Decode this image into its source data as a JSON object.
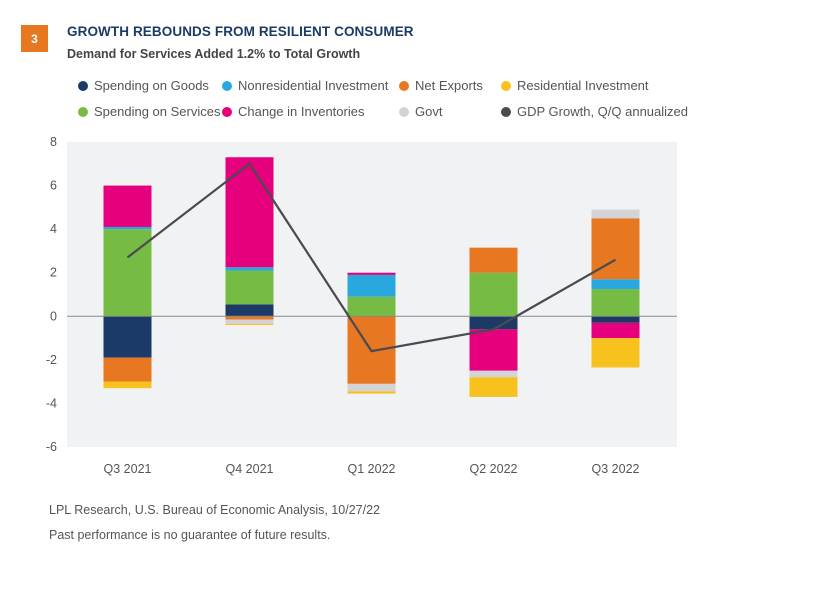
{
  "header": {
    "badge": "3",
    "title": "GROWTH REBOUNDS FROM RESILIENT CONSUMER",
    "subtitle": "Demand for Services Added 1.2% to Total Growth"
  },
  "footer": {
    "source": "LPL Research, U.S. Bureau of Economic Analysis,  10/27/22",
    "disclaimer": "Past performance is no guarantee of future results."
  },
  "colors": {
    "badge": "#e87722",
    "title": "#1b3a66",
    "plot_background": "#f1f2f4"
  },
  "chart_data": {
    "type": "bar",
    "stacked": true,
    "title": "GROWTH REBOUNDS FROM RESILIENT CONSUMER",
    "subtitle": "Demand for Services Added 1.2% to Total Growth",
    "xlabel": "",
    "ylabel": "",
    "ylim": [
      -6,
      8
    ],
    "yticks": [
      8,
      6,
      4,
      2,
      0,
      -2,
      -4,
      -6
    ],
    "grid": false,
    "legend_position": "top",
    "categories": [
      "Q3 2021",
      "Q4 2021",
      "Q1 2022",
      "Q2 2022",
      "Q3 2022"
    ],
    "series": [
      {
        "name": "Spending on Goods",
        "color": "#1b3a66",
        "values": [
          -1.9,
          0.55,
          0.0,
          -0.6,
          -0.3
        ]
      },
      {
        "name": "Spending on Services",
        "color": "#76bc44",
        "values": [
          4.0,
          1.55,
          0.9,
          2.0,
          1.25
        ]
      },
      {
        "name": "Nonresidential Investment",
        "color": "#29a8e0",
        "values": [
          0.1,
          0.15,
          1.0,
          0.0,
          0.45
        ]
      },
      {
        "name": "Change in Inventories",
        "color": "#e6007e",
        "values": [
          1.9,
          5.05,
          0.1,
          -1.9,
          -0.7
        ]
      },
      {
        "name": "Net Exports",
        "color": "#e87722",
        "values": [
          -1.1,
          -0.15,
          -3.1,
          1.15,
          2.8
        ]
      },
      {
        "name": "Govt",
        "color": "#d4d4d6",
        "values": [
          0.0,
          -0.2,
          -0.35,
          -0.3,
          0.4
        ]
      },
      {
        "name": "Residential Investment",
        "color": "#f7c11e",
        "values": [
          -0.3,
          -0.05,
          -0.1,
          -0.9,
          -1.35
        ]
      }
    ],
    "line": {
      "name": "GDP Growth, Q/Q annualized",
      "color": "#4a4a4f",
      "values": [
        2.7,
        7.0,
        -1.6,
        -0.6,
        2.6
      ]
    }
  },
  "legend": [
    {
      "label": "Spending on Goods",
      "color": "#1b3a66"
    },
    {
      "label": "Nonresidential Investment",
      "color": "#29a8e0"
    },
    {
      "label": "Net Exports",
      "color": "#e87722"
    },
    {
      "label": "Residential Investment",
      "color": "#f7c11e"
    },
    {
      "label": "Spending on Services",
      "color": "#76bc44"
    },
    {
      "label": "Change in Inventories",
      "color": "#e6007e"
    },
    {
      "label": "Govt",
      "color": "#d4d4d6"
    },
    {
      "label": "GDP Growth, Q/Q annualized",
      "color": "#4a4a4f"
    }
  ]
}
